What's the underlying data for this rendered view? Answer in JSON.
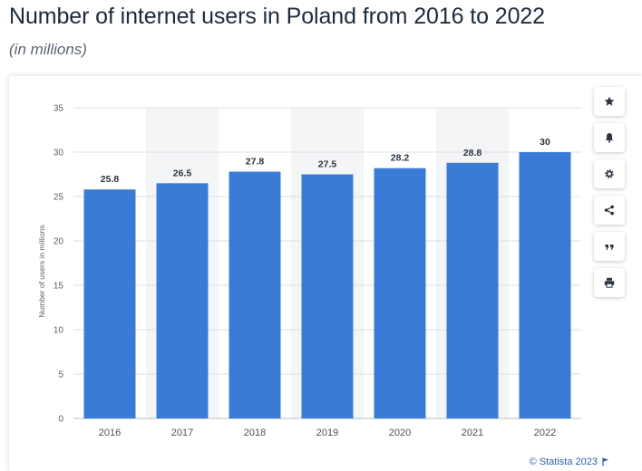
{
  "header": {
    "title": "Number of internet users in Poland from 2016 to 2022",
    "subtitle": "(in millions)"
  },
  "chart_data": {
    "type": "bar",
    "categories": [
      "2016",
      "2017",
      "2018",
      "2019",
      "2020",
      "2021",
      "2022"
    ],
    "values": [
      25.8,
      26.5,
      27.8,
      27.5,
      28.2,
      28.8,
      30
    ],
    "value_labels": [
      "25.8",
      "26.5",
      "27.8",
      "27.5",
      "28.2",
      "28.8",
      "30"
    ],
    "ylabel": "Number of users in millions",
    "ylim": [
      0,
      35
    ],
    "yticks": [
      "0",
      "5",
      "10",
      "15",
      "20",
      "25",
      "30",
      "35"
    ],
    "grid": true,
    "legend": "none",
    "bar_color": "#3a7bd5"
  },
  "toolbar": {
    "buttons": [
      {
        "icon": "star-icon"
      },
      {
        "icon": "bell-icon"
      },
      {
        "icon": "gear-icon"
      },
      {
        "icon": "share-icon"
      },
      {
        "icon": "quote-icon"
      },
      {
        "icon": "print-icon"
      }
    ]
  },
  "footer": {
    "credit": "© Statista 2023"
  },
  "colors": {
    "bar": "#3a7bd5",
    "link": "#2e5ea9",
    "band": "#f4f5f7",
    "grid": "#dcdfe3"
  }
}
